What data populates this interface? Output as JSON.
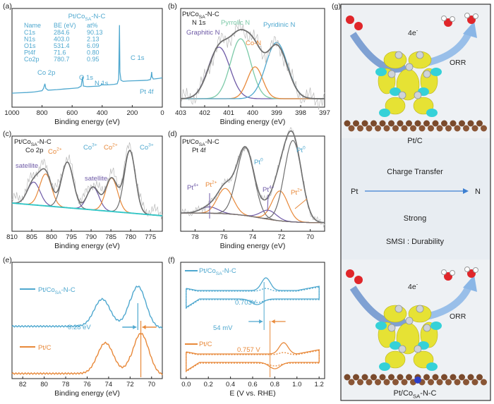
{
  "colors": {
    "blue": "#4fa8cf",
    "orange": "#e8893a",
    "purple": "#6f5ba7",
    "green": "#7ccaa8",
    "gray": "#6f6f6f",
    "cyan": "#2ec7c7",
    "raw": "#b9b9b9",
    "arrow_blue": "#3c7fd1",
    "carbon": "#7a4a2c"
  },
  "panel_letters": {
    "a": "(a)",
    "b": "(b)",
    "c": "(c)",
    "d": "(d)",
    "e": "(e)",
    "f": "(f)",
    "g": "(g)"
  },
  "chart_data": [
    {
      "id": "a",
      "type": "line",
      "sample": "Pt/Co",
      "sample_sub": "SA",
      "sample_tail": "-N-C",
      "xlabel": "Binding energy (eV)",
      "xlim": [
        1000,
        0
      ],
      "xticks": [
        "1000",
        "800",
        "600",
        "400",
        "200",
        "0"
      ],
      "table": {
        "headers": [
          "Name",
          "BE (eV)",
          "at%"
        ],
        "rows": [
          [
            "C1s",
            "284.6",
            "90.13"
          ],
          [
            "N1s",
            "403.0",
            "2.13"
          ],
          [
            "O1s",
            "531.4",
            "6.09"
          ],
          [
            "Pt4f",
            "71.6",
            "0.80"
          ],
          [
            "Co2p",
            "780.7",
            "0.95"
          ]
        ]
      },
      "peak_labels": [
        "Co 2p",
        "O 1s",
        "N 1s",
        "C 1s",
        "Pt 4f"
      ],
      "spectrum_x": [
        1000,
        950,
        900,
        850,
        800,
        790,
        781,
        775,
        760,
        700,
        650,
        600,
        560,
        540,
        531,
        525,
        500,
        450,
        420,
        405,
        403,
        400,
        380,
        350,
        320,
        300,
        290,
        285,
        282,
        275,
        260,
        230,
        200,
        150,
        100,
        80,
        74,
        71,
        68,
        60,
        40,
        20,
        0
      ],
      "spectrum_y": [
        72,
        72.3,
        72.5,
        73,
        74,
        76,
        80,
        76,
        74.5,
        75,
        75.5,
        76,
        76.5,
        78,
        86,
        78,
        77.5,
        77.8,
        78,
        79,
        80.5,
        79,
        79,
        79.2,
        79.5,
        80,
        84,
        130,
        90,
        83,
        82,
        82.3,
        82.5,
        82.7,
        83,
        83.5,
        86,
        90,
        86,
        84,
        84.3,
        84.6,
        85
      ]
    },
    {
      "id": "b",
      "type": "line",
      "sample": "Pt/Co",
      "sample_sub": "SA",
      "sample_tail": "-N-C",
      "subtitle": "N 1s",
      "xlabel": "Binding energy (eV)",
      "xlim": [
        403,
        397
      ],
      "xticks": [
        "403",
        "402",
        "401",
        "400",
        "399",
        "398",
        "397"
      ],
      "series": [
        {
          "name": "Graphitic N",
          "center": 401.4,
          "height": 0.55,
          "width": 0.45,
          "color": "purple"
        },
        {
          "name": "Pyrrolic N",
          "center": 400.5,
          "height": 0.64,
          "width": 0.42,
          "color": "green"
        },
        {
          "name": "Co-N",
          "center": 399.9,
          "height": 0.34,
          "width": 0.32,
          "color": "orange"
        },
        {
          "name": "Pyridinic N",
          "center": 399.0,
          "height": 0.6,
          "width": 0.45,
          "color": "blue"
        }
      ]
    },
    {
      "id": "c",
      "type": "line",
      "sample": "Pt/Co",
      "sample_sub": "SA",
      "sample_tail": "-N-C",
      "subtitle": "Co 2p",
      "xlabel": "Binding energy (eV)",
      "xlim": [
        810,
        772
      ],
      "xticks": [
        "810",
        "805",
        "800",
        "795",
        "790",
        "785",
        "780",
        "775"
      ],
      "series": [
        {
          "name": "satellite",
          "center": 804.5,
          "height": 0.3,
          "width": 1.6,
          "color": "purple"
        },
        {
          "name": "Co",
          "sup": "2+",
          "center": 801.5,
          "height": 0.42,
          "width": 1.5,
          "color": "orange"
        },
        {
          "name": "Co",
          "sup": "3+",
          "center": 796.0,
          "height": 0.6,
          "width": 1.5,
          "color": "gray"
        },
        {
          "name": "satellite",
          "center": 789.5,
          "height": 0.3,
          "width": 1.5,
          "color": "purple"
        },
        {
          "name": "Co",
          "sup": "2+",
          "center": 784.8,
          "height": 0.44,
          "width": 1.5,
          "color": "orange"
        },
        {
          "name": "Co",
          "sup": "3+",
          "center": 780.2,
          "height": 0.82,
          "width": 1.4,
          "color": "gray"
        }
      ]
    },
    {
      "id": "d",
      "type": "line",
      "sample": "Pt/Co",
      "sample_sub": "SA",
      "sample_tail": "-N-C",
      "subtitle": "Pt 4f",
      "xlabel": "Binding energy (eV)",
      "xlim": [
        79,
        69
      ],
      "xticks": [
        "78",
        "76",
        "74",
        "72",
        "70"
      ],
      "series": [
        {
          "name": "Pt",
          "sup": "4+",
          "center": 77.0,
          "height": 0.07,
          "width": 0.6,
          "color": "purple"
        },
        {
          "name": "Pt",
          "sup": "2+",
          "center": 75.9,
          "height": 0.28,
          "width": 0.55,
          "color": "orange"
        },
        {
          "name": "Pt",
          "sup": "0",
          "center": 74.5,
          "height": 0.75,
          "width": 0.6,
          "color": "gray"
        },
        {
          "name": "Pt",
          "sup": "4+",
          "center": 72.9,
          "height": 0.1,
          "width": 0.55,
          "color": "purple"
        },
        {
          "name": "Pt",
          "sup": "2+",
          "center": 72.1,
          "height": 0.33,
          "width": 0.55,
          "color": "orange"
        },
        {
          "name": "Pt",
          "sup": "0",
          "center": 71.2,
          "height": 0.9,
          "width": 0.6,
          "color": "gray"
        }
      ]
    },
    {
      "id": "e",
      "type": "line",
      "xlabel": "Binding energy (eV)",
      "xlim": [
        83,
        69
      ],
      "xticks": [
        "82",
        "80",
        "78",
        "76",
        "74",
        "72",
        "70"
      ],
      "series": [
        {
          "name": "Pt/Co",
          "sub": "SA",
          "tail": "-N-C",
          "color": "blue",
          "peaks": [
            [
              74.6,
              0.55
            ],
            [
              71.28,
              0.85
            ]
          ]
        },
        {
          "name": "Pt/C",
          "color": "orange",
          "peaks": [
            [
              74.3,
              0.62
            ],
            [
              71.0,
              0.85
            ]
          ]
        }
      ],
      "annotation": "0.28 eV"
    },
    {
      "id": "f",
      "type": "line",
      "xlabel": "E (V vs. RHE)",
      "xlim": [
        -0.05,
        1.25
      ],
      "xticks": [
        "0.0",
        "0.2",
        "0.4",
        "0.6",
        "0.8",
        "1.0",
        "1.2"
      ],
      "series": [
        {
          "name": "Pt/Co",
          "sub": "SA",
          "tail": "-N-C",
          "color": "blue",
          "half_wave": "0.703V",
          "half_wave_x": 0.703
        },
        {
          "name": "Pt/C",
          "color": "orange",
          "half_wave": "0.757 V",
          "half_wave_x": 0.757
        }
      ],
      "annotation": "54 mV"
    }
  ],
  "g": {
    "top_electron": "4e",
    "top_sup": "-",
    "top_reaction": "ORR",
    "top_caption": "Pt/C",
    "charge_transfer": "Charge Transfer",
    "from": "Pt",
    "to": "N",
    "strong": "Strong",
    "smsi": "SMSI : Durability",
    "bottom_electron": "4e",
    "bottom_sup": "-",
    "bottom_reaction": "ORR",
    "bottom_caption_a": "Pt/Co",
    "bottom_caption_sub": "SA",
    "bottom_caption_b": "-N-C"
  }
}
